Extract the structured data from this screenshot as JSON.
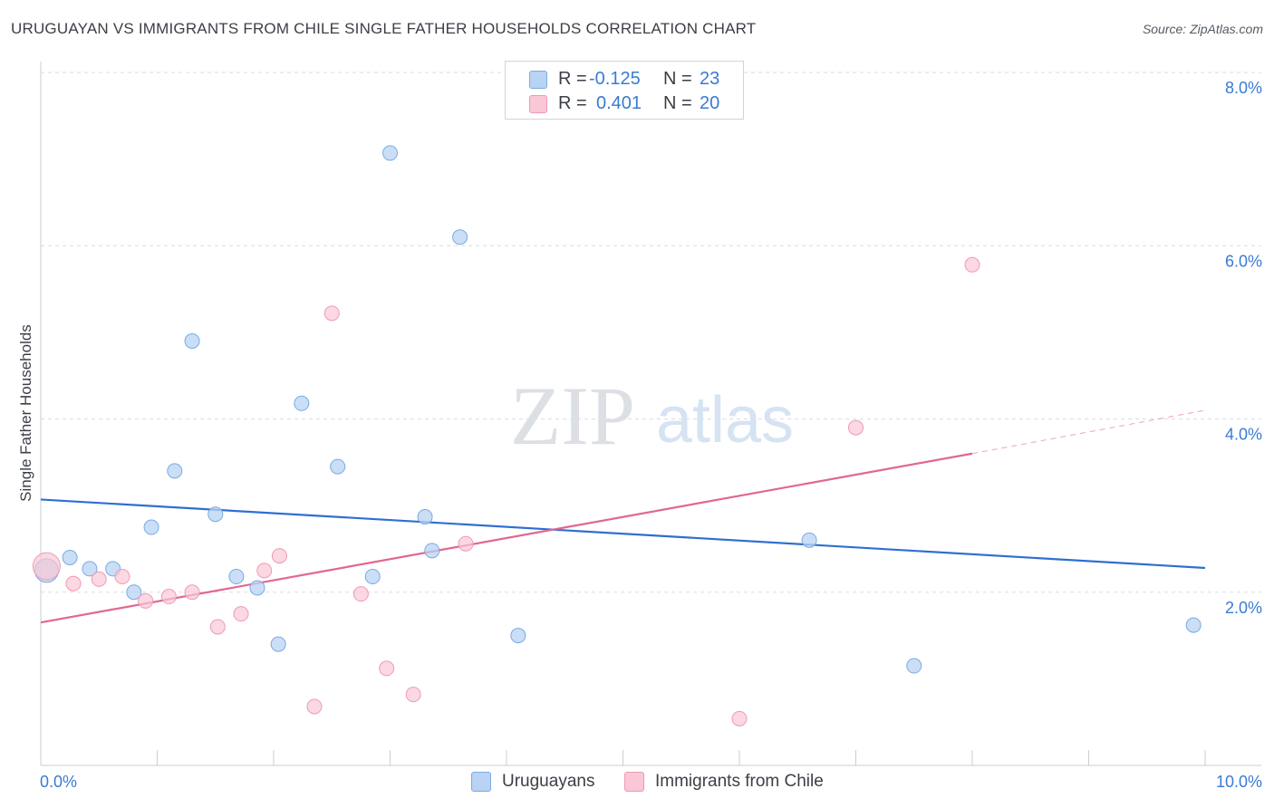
{
  "title": "URUGUAYAN VS IMMIGRANTS FROM CHILE SINGLE FATHER HOUSEHOLDS CORRELATION CHART",
  "source": "Source: ZipAtlas.com",
  "watermark": {
    "zip": "ZIP",
    "atlas": "atlas"
  },
  "stats": {
    "uruguayans": {
      "r_label": "R =",
      "r_value": "-0.125",
      "n_label": "N =",
      "n_value": "23"
    },
    "chile": {
      "r_label": "R =",
      "r_value": "0.401",
      "n_label": "N =",
      "n_value": "20"
    }
  },
  "colors": {
    "uruguayans_fill": "#b8d3f3",
    "uruguayans_stroke": "#7aaae4",
    "uruguayans_line": "#2f6fd0",
    "chile_fill": "#f9c7d6",
    "chile_stroke": "#ee9ab4",
    "chile_line": "#e06792",
    "tick_label": "#3a7bd5",
    "grid": "#d8dce2"
  },
  "chart_data": {
    "type": "scatter",
    "title": "URUGUAYAN VS IMMIGRANTS FROM CHILE SINGLE FATHER HOUSEHOLDS CORRELATION CHART",
    "xlabel": "",
    "ylabel": "Single Father Households",
    "xlim": [
      0,
      10
    ],
    "ylim": [
      0,
      8
    ],
    "x_tick_labels": [
      "0.0%",
      "10.0%"
    ],
    "y_tick_labels": [
      "2.0%",
      "4.0%",
      "6.0%",
      "8.0%"
    ],
    "y_ticks": [
      2,
      4,
      6,
      8
    ],
    "grid": true,
    "legend_position": "bottom-center",
    "series": [
      {
        "name": "Uruguayans",
        "points": [
          {
            "x": 0.05,
            "y": 2.25
          },
          {
            "x": 0.25,
            "y": 2.4
          },
          {
            "x": 0.42,
            "y": 2.27
          },
          {
            "x": 0.62,
            "y": 2.27
          },
          {
            "x": 0.8,
            "y": 2.0
          },
          {
            "x": 0.95,
            "y": 2.75
          },
          {
            "x": 1.15,
            "y": 3.4
          },
          {
            "x": 1.3,
            "y": 4.9
          },
          {
            "x": 1.5,
            "y": 2.9
          },
          {
            "x": 1.68,
            "y": 2.18
          },
          {
            "x": 1.86,
            "y": 2.05
          },
          {
            "x": 2.04,
            "y": 1.4
          },
          {
            "x": 2.24,
            "y": 4.18
          },
          {
            "x": 2.55,
            "y": 3.45
          },
          {
            "x": 2.85,
            "y": 2.18
          },
          {
            "x": 3.0,
            "y": 7.07
          },
          {
            "x": 3.3,
            "y": 2.87
          },
          {
            "x": 3.36,
            "y": 2.48
          },
          {
            "x": 3.6,
            "y": 6.1
          },
          {
            "x": 4.1,
            "y": 1.5
          },
          {
            "x": 6.6,
            "y": 2.6
          },
          {
            "x": 7.5,
            "y": 1.15
          },
          {
            "x": 9.9,
            "y": 1.62
          }
        ],
        "trend": {
          "x": [
            0,
            10
          ],
          "y": [
            3.07,
            2.28
          ]
        }
      },
      {
        "name": "Immigrants from Chile",
        "points": [
          {
            "x": 0.05,
            "y": 2.3
          },
          {
            "x": 0.28,
            "y": 2.1
          },
          {
            "x": 0.5,
            "y": 2.15
          },
          {
            "x": 0.7,
            "y": 2.18
          },
          {
            "x": 0.9,
            "y": 1.9
          },
          {
            "x": 1.1,
            "y": 1.95
          },
          {
            "x": 1.3,
            "y": 2.0
          },
          {
            "x": 1.52,
            "y": 1.6
          },
          {
            "x": 1.72,
            "y": 1.75
          },
          {
            "x": 1.92,
            "y": 2.25
          },
          {
            "x": 2.05,
            "y": 2.42
          },
          {
            "x": 2.35,
            "y": 0.68
          },
          {
            "x": 2.5,
            "y": 5.22
          },
          {
            "x": 2.75,
            "y": 1.98
          },
          {
            "x": 2.97,
            "y": 1.12
          },
          {
            "x": 3.2,
            "y": 0.82
          },
          {
            "x": 3.65,
            "y": 2.56
          },
          {
            "x": 6.0,
            "y": 0.54
          },
          {
            "x": 7.0,
            "y": 3.9
          },
          {
            "x": 8.0,
            "y": 5.78
          }
        ],
        "trend": {
          "x": [
            0,
            8
          ],
          "y": [
            1.65,
            3.6
          ]
        },
        "trend_extension": {
          "x": [
            8,
            10
          ],
          "y": [
            3.6,
            4.1
          ]
        }
      }
    ]
  },
  "legend": {
    "uruguayans": "Uruguayans",
    "chile": "Immigrants from Chile"
  }
}
